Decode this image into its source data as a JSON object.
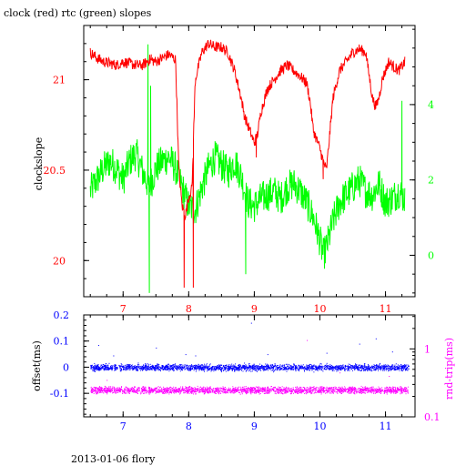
{
  "title": "clock (red) rtc (green) slopes",
  "footer": "2013-01-06 flory",
  "colors": {
    "axis": "#000000",
    "red": "#ff0000",
    "green": "#00ff00",
    "blue": "#0000ff",
    "magenta": "#ff00ff"
  },
  "chart_data": [
    {
      "type": "line",
      "panel": "top",
      "ylabel": "clockslope",
      "ylim_left": [
        19.8,
        21.3
      ],
      "ylim_right": [
        -1.1,
        6.1
      ],
      "xlim": [
        6.4,
        11.45
      ],
      "x_ticks": [
        7,
        8,
        9,
        10,
        11
      ],
      "x_tick_labels": [
        "7",
        "8",
        "9",
        "10",
        "11"
      ],
      "left_ticks": [
        20,
        20.5,
        21
      ],
      "left_tick_labels": [
        "20",
        "20.5",
        "21"
      ],
      "right_ticks": [
        0,
        2,
        4
      ],
      "right_tick_labels": [
        "0",
        "2",
        "4"
      ],
      "series": [
        {
          "name": "clock",
          "color": "red",
          "axis": "left",
          "x": [
            6.5,
            6.6,
            6.7,
            6.8,
            6.9,
            7.0,
            7.1,
            7.2,
            7.3,
            7.4,
            7.5,
            7.6,
            7.7,
            7.8,
            7.85,
            7.9,
            7.95,
            8.0,
            8.05,
            8.1,
            8.2,
            8.3,
            8.4,
            8.5,
            8.6,
            8.7,
            8.8,
            8.85,
            8.9,
            8.95,
            9.0,
            9.05,
            9.1,
            9.2,
            9.3,
            9.4,
            9.5,
            9.6,
            9.7,
            9.8,
            9.85,
            9.9,
            9.95,
            10.0,
            10.05,
            10.1,
            10.2,
            10.3,
            10.4,
            10.5,
            10.6,
            10.7,
            10.8,
            10.85,
            10.9,
            10.95,
            11.0,
            11.05,
            11.1,
            11.2,
            11.3
          ],
          "y": [
            21.15,
            21.12,
            21.1,
            21.09,
            21.08,
            21.1,
            21.09,
            21.08,
            21.08,
            21.11,
            21.1,
            21.12,
            21.14,
            21.11,
            20.5,
            20.3,
            20.25,
            20.35,
            20.4,
            21.0,
            21.15,
            21.2,
            21.18,
            21.18,
            21.15,
            21.05,
            20.9,
            20.8,
            20.75,
            20.7,
            20.65,
            20.7,
            20.82,
            20.95,
            21.0,
            21.05,
            21.08,
            21.05,
            21.02,
            20.98,
            20.88,
            20.72,
            20.67,
            20.62,
            20.55,
            20.5,
            20.9,
            21.05,
            21.1,
            21.15,
            21.17,
            21.15,
            20.9,
            20.85,
            20.9,
            21.0,
            21.05,
            21.1,
            21.08,
            21.05,
            21.1
          ],
          "spikes": [
            {
              "x": 7.43,
              "y": 21.14
            },
            {
              "x": 7.93,
              "y": 19.85
            },
            {
              "x": 8.07,
              "y": 19.85
            },
            {
              "x": 9.03,
              "y": 20.57
            },
            {
              "x": 10.05,
              "y": 20.45
            }
          ]
        },
        {
          "name": "rtc",
          "color": "green",
          "axis": "right",
          "x": [
            6.5,
            6.6,
            6.7,
            6.8,
            6.9,
            7.0,
            7.1,
            7.2,
            7.3,
            7.4,
            7.5,
            7.6,
            7.7,
            7.8,
            7.9,
            8.0,
            8.1,
            8.2,
            8.3,
            8.4,
            8.5,
            8.6,
            8.7,
            8.8,
            8.9,
            9.0,
            9.1,
            9.2,
            9.3,
            9.4,
            9.5,
            9.6,
            9.7,
            9.8,
            9.9,
            10.0,
            10.05,
            10.1,
            10.2,
            10.3,
            10.4,
            10.5,
            10.6,
            10.7,
            10.8,
            10.9,
            11.0,
            11.1,
            11.2,
            11.3
          ],
          "y": [
            1.7,
            2.0,
            2.3,
            2.5,
            2.3,
            2.0,
            2.5,
            2.7,
            2.2,
            1.8,
            2.3,
            2.5,
            2.6,
            2.3,
            1.8,
            1.3,
            1.2,
            1.8,
            2.3,
            2.6,
            2.4,
            2.2,
            2.5,
            2.1,
            1.4,
            1.3,
            1.5,
            1.6,
            1.7,
            1.5,
            1.8,
            1.9,
            1.7,
            1.4,
            1.0,
            0.4,
            0.0,
            0.2,
            0.9,
            1.4,
            1.6,
            1.8,
            2.0,
            1.7,
            1.6,
            1.9,
            1.4,
            1.5,
            1.7,
            1.5
          ],
          "spikes": [
            {
              "x": 7.38,
              "y": 5.6
            },
            {
              "x": 7.4,
              "y": -1.0
            },
            {
              "x": 7.42,
              "y": 4.5
            },
            {
              "x": 8.87,
              "y": -0.5
            },
            {
              "x": 11.25,
              "y": 4.1
            }
          ]
        }
      ]
    },
    {
      "type": "scatter",
      "panel": "bottom",
      "ylabel_left": "offset(ms)",
      "ylabel_right": "rnd-trip(ms)",
      "ylim_left": [
        -0.19,
        0.2
      ],
      "ylim_right_log10": [
        -1.0,
        0.5
      ],
      "xlim": [
        6.4,
        11.45
      ],
      "x_ticks": [
        7,
        8,
        9,
        10,
        11
      ],
      "x_tick_labels": [
        "7",
        "8",
        "9",
        "10",
        "11"
      ],
      "left_ticks": [
        0.2,
        0.1,
        0,
        -0.1
      ],
      "left_tick_labels": [
        "0.2",
        "0.1",
        "0",
        "-0.1"
      ],
      "right_ticks": [
        1,
        0.1
      ],
      "right_tick_labels": [
        "1",
        "0.1"
      ],
      "series": [
        {
          "name": "offset",
          "color": "blue",
          "axis": "left",
          "x_range": [
            6.5,
            11.35
          ],
          "center": 0.0,
          "spread": 0.012,
          "outliers": [
            {
              "x": 6.62,
              "y": 0.085
            },
            {
              "x": 6.85,
              "y": 0.045
            },
            {
              "x": 7.5,
              "y": 0.075
            },
            {
              "x": 7.95,
              "y": 0.05
            },
            {
              "x": 8.1,
              "y": 0.045
            },
            {
              "x": 8.95,
              "y": 0.17
            },
            {
              "x": 9.2,
              "y": 0.05
            },
            {
              "x": 10.1,
              "y": 0.055
            },
            {
              "x": 10.6,
              "y": 0.09
            },
            {
              "x": 10.85,
              "y": 0.11
            },
            {
              "x": 11.1,
              "y": 0.06
            }
          ]
        },
        {
          "name": "rnd-trip",
          "color": "magenta",
          "axis": "right",
          "x_range": [
            6.5,
            11.35
          ],
          "center": 0.25,
          "spread": 0.025,
          "outliers": [
            {
              "x": 6.75,
              "y": 0.35
            },
            {
              "x": 9.8,
              "y": 1.35
            },
            {
              "x": 10.3,
              "y": 0.45
            },
            {
              "x": 11.05,
              "y": 0.4
            }
          ]
        }
      ]
    }
  ]
}
